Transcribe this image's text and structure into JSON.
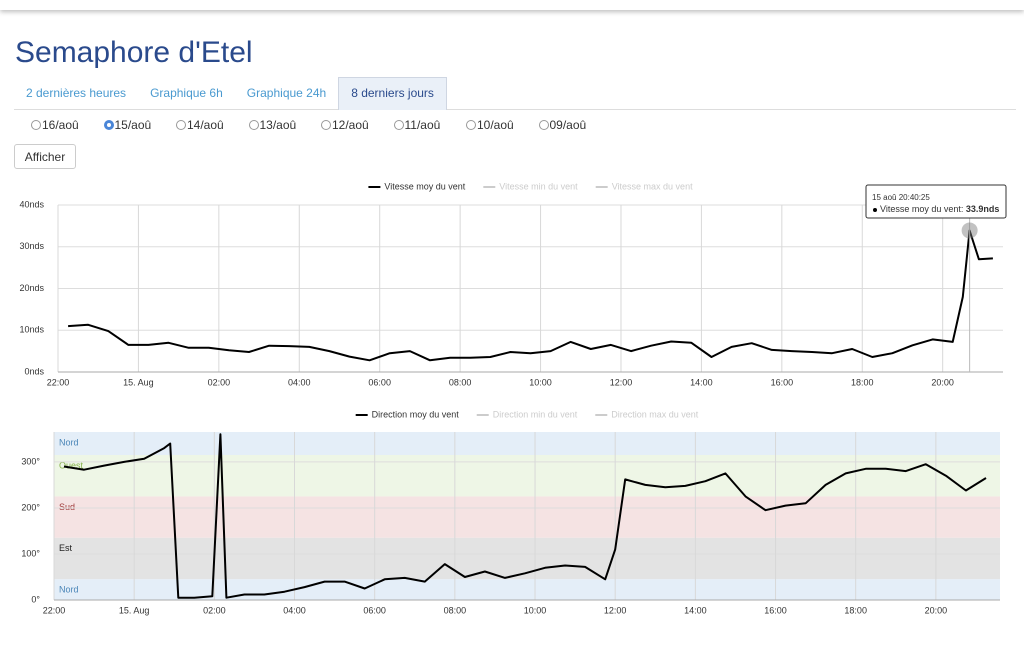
{
  "header": {
    "title": "Semaphore d'Etel"
  },
  "tabs": [
    "2 dernières heures",
    "Graphique 6h",
    "Graphique 24h",
    "8 derniers jours"
  ],
  "active_tab": 3,
  "dates": [
    "16/aoû",
    "15/aoû",
    "14/aoû",
    "13/aoû",
    "12/aoû",
    "11/aoû",
    "10/aoû",
    "09/aoû"
  ],
  "selected_date": 1,
  "button": "Afficher",
  "chart_data": [
    {
      "type": "line",
      "grid": true,
      "xlim": [
        22,
        45.5
      ],
      "ylim": [
        0,
        40
      ],
      "xticks": [
        {
          "value": 22,
          "label": "22:00"
        },
        {
          "value": 24,
          "label": "15. Aug"
        },
        {
          "value": 26,
          "label": "02:00"
        },
        {
          "value": 28,
          "label": "04:00"
        },
        {
          "value": 30,
          "label": "06:00"
        },
        {
          "value": 32,
          "label": "08:00"
        },
        {
          "value": 34,
          "label": "10:00"
        },
        {
          "value": 36,
          "label": "12:00"
        },
        {
          "value": 38,
          "label": "14:00"
        },
        {
          "value": 40,
          "label": "16:00"
        },
        {
          "value": 42,
          "label": "18:00"
        },
        {
          "value": 44,
          "label": "20:00"
        }
      ],
      "yticks": [
        {
          "value": 0,
          "label": "0nds"
        },
        {
          "value": 10,
          "label": "10nds"
        },
        {
          "value": 20,
          "label": "20nds"
        },
        {
          "value": 30,
          "label": "30nds"
        },
        {
          "value": 40,
          "label": "40nds"
        }
      ],
      "series": [
        {
          "name": "Vitesse moy du vent",
          "color": "#000000",
          "visible": true,
          "x": [
            22.25,
            22.75,
            23.25,
            23.75,
            24.25,
            24.75,
            25.25,
            25.75,
            26.25,
            26.75,
            27.25,
            27.75,
            28.25,
            28.75,
            29.25,
            29.75,
            30.25,
            30.75,
            31.25,
            31.75,
            32.25,
            32.75,
            33.25,
            33.75,
            34.25,
            34.75,
            35.25,
            35.75,
            36.25,
            36.75,
            37.25,
            37.75,
            38.25,
            38.75,
            39.25,
            39.75,
            40.25,
            40.75,
            41.25,
            41.75,
            42.25,
            42.75,
            43.25,
            43.75,
            44.25,
            44.5,
            44.67,
            44.9,
            45.25
          ],
          "values": [
            11,
            11.3,
            9.8,
            6.5,
            6.5,
            7,
            5.8,
            5.8,
            5.2,
            4.8,
            6.3,
            6.2,
            6,
            5,
            3.7,
            2.8,
            4.5,
            5,
            2.8,
            3.4,
            3.4,
            3.6,
            4.8,
            4.5,
            5,
            7.2,
            5.5,
            6.5,
            5,
            6.3,
            7.3,
            7,
            3.6,
            6,
            6.9,
            5.3,
            5,
            4.8,
            4.5,
            5.5,
            3.6,
            4.5,
            6.4,
            7.8,
            7.2,
            18,
            33.9,
            27,
            27.2
          ]
        },
        {
          "name": "Vitesse min du vent",
          "color": "#cccccc",
          "visible": false
        },
        {
          "name": "Vitesse max du vent",
          "color": "#cccccc",
          "visible": false
        }
      ],
      "tooltip": {
        "header": "15 aoû 20:40:25",
        "label": "Vitesse moy du vent:",
        "x": 44.67,
        "value": 33.9,
        "value_label": "33.9nds"
      }
    },
    {
      "type": "line",
      "grid": true,
      "xlim": [
        22,
        45.6
      ],
      "ylim": [
        0,
        365
      ],
      "xticks": [
        {
          "value": 22,
          "label": "22:00"
        },
        {
          "value": 24,
          "label": "15. Aug"
        },
        {
          "value": 26,
          "label": "02:00"
        },
        {
          "value": 28,
          "label": "04:00"
        },
        {
          "value": 30,
          "label": "06:00"
        },
        {
          "value": 32,
          "label": "08:00"
        },
        {
          "value": 34,
          "label": "10:00"
        },
        {
          "value": 36,
          "label": "12:00"
        },
        {
          "value": 38,
          "label": "14:00"
        },
        {
          "value": 40,
          "label": "16:00"
        },
        {
          "value": 42,
          "label": "18:00"
        },
        {
          "value": 44,
          "label": "20:00"
        }
      ],
      "yticks": [
        {
          "value": 0,
          "label": "0°"
        },
        {
          "value": 100,
          "label": "100°"
        },
        {
          "value": 200,
          "label": "200°"
        },
        {
          "value": 300,
          "label": "300°"
        }
      ],
      "bands": [
        {
          "label": "Nord",
          "from": 315,
          "to": 365,
          "color": "#e4eef8",
          "label_color": "#4a86b8"
        },
        {
          "label": "Ouest",
          "from": 225,
          "to": 315,
          "color": "#eef6e6",
          "label_color": "#86b04a"
        },
        {
          "label": "Sud",
          "from": 135,
          "to": 225,
          "color": "#f5e3e3",
          "label_color": "#a03c3c"
        },
        {
          "label": "Est",
          "from": 45,
          "to": 135,
          "color": "#e3e3e3",
          "label_color": "#222222"
        },
        {
          "label": "Nord",
          "from": 0,
          "to": 45,
          "color": "#e4eef8",
          "label_color": "#4a86b8"
        }
      ],
      "series": [
        {
          "name": "Direction moy du vent",
          "color": "#000000",
          "visible": true,
          "x": [
            22.25,
            22.75,
            23.25,
            23.75,
            24.25,
            24.75,
            24.9,
            25.1,
            25.5,
            25.95,
            26.15,
            26.3,
            26.75,
            27.25,
            27.75,
            28.25,
            28.75,
            29.25,
            29.75,
            30.25,
            30.75,
            31.25,
            31.75,
            32.25,
            32.75,
            33.25,
            33.75,
            34.25,
            34.75,
            35.25,
            35.75,
            36.0,
            36.25,
            36.75,
            37.25,
            37.75,
            38.25,
            38.75,
            39.25,
            39.75,
            40.25,
            40.75,
            41.25,
            41.75,
            42.25,
            42.75,
            43.25,
            43.75,
            44.25,
            44.75,
            45.25
          ],
          "values": [
            290,
            283,
            292,
            300,
            307,
            330,
            340,
            5,
            5,
            8,
            360,
            5,
            12,
            12,
            18,
            28,
            40,
            40,
            25,
            45,
            48,
            40,
            78,
            50,
            62,
            48,
            58,
            70,
            75,
            72,
            45,
            110,
            262,
            250,
            245,
            248,
            258,
            275,
            225,
            195,
            205,
            210,
            250,
            275,
            285,
            285,
            280,
            295,
            270,
            238,
            265
          ]
        },
        {
          "name": "Direction min du vent",
          "color": "#cccccc",
          "visible": false
        },
        {
          "name": "Direction max du vent",
          "color": "#cccccc",
          "visible": false
        }
      ]
    }
  ]
}
